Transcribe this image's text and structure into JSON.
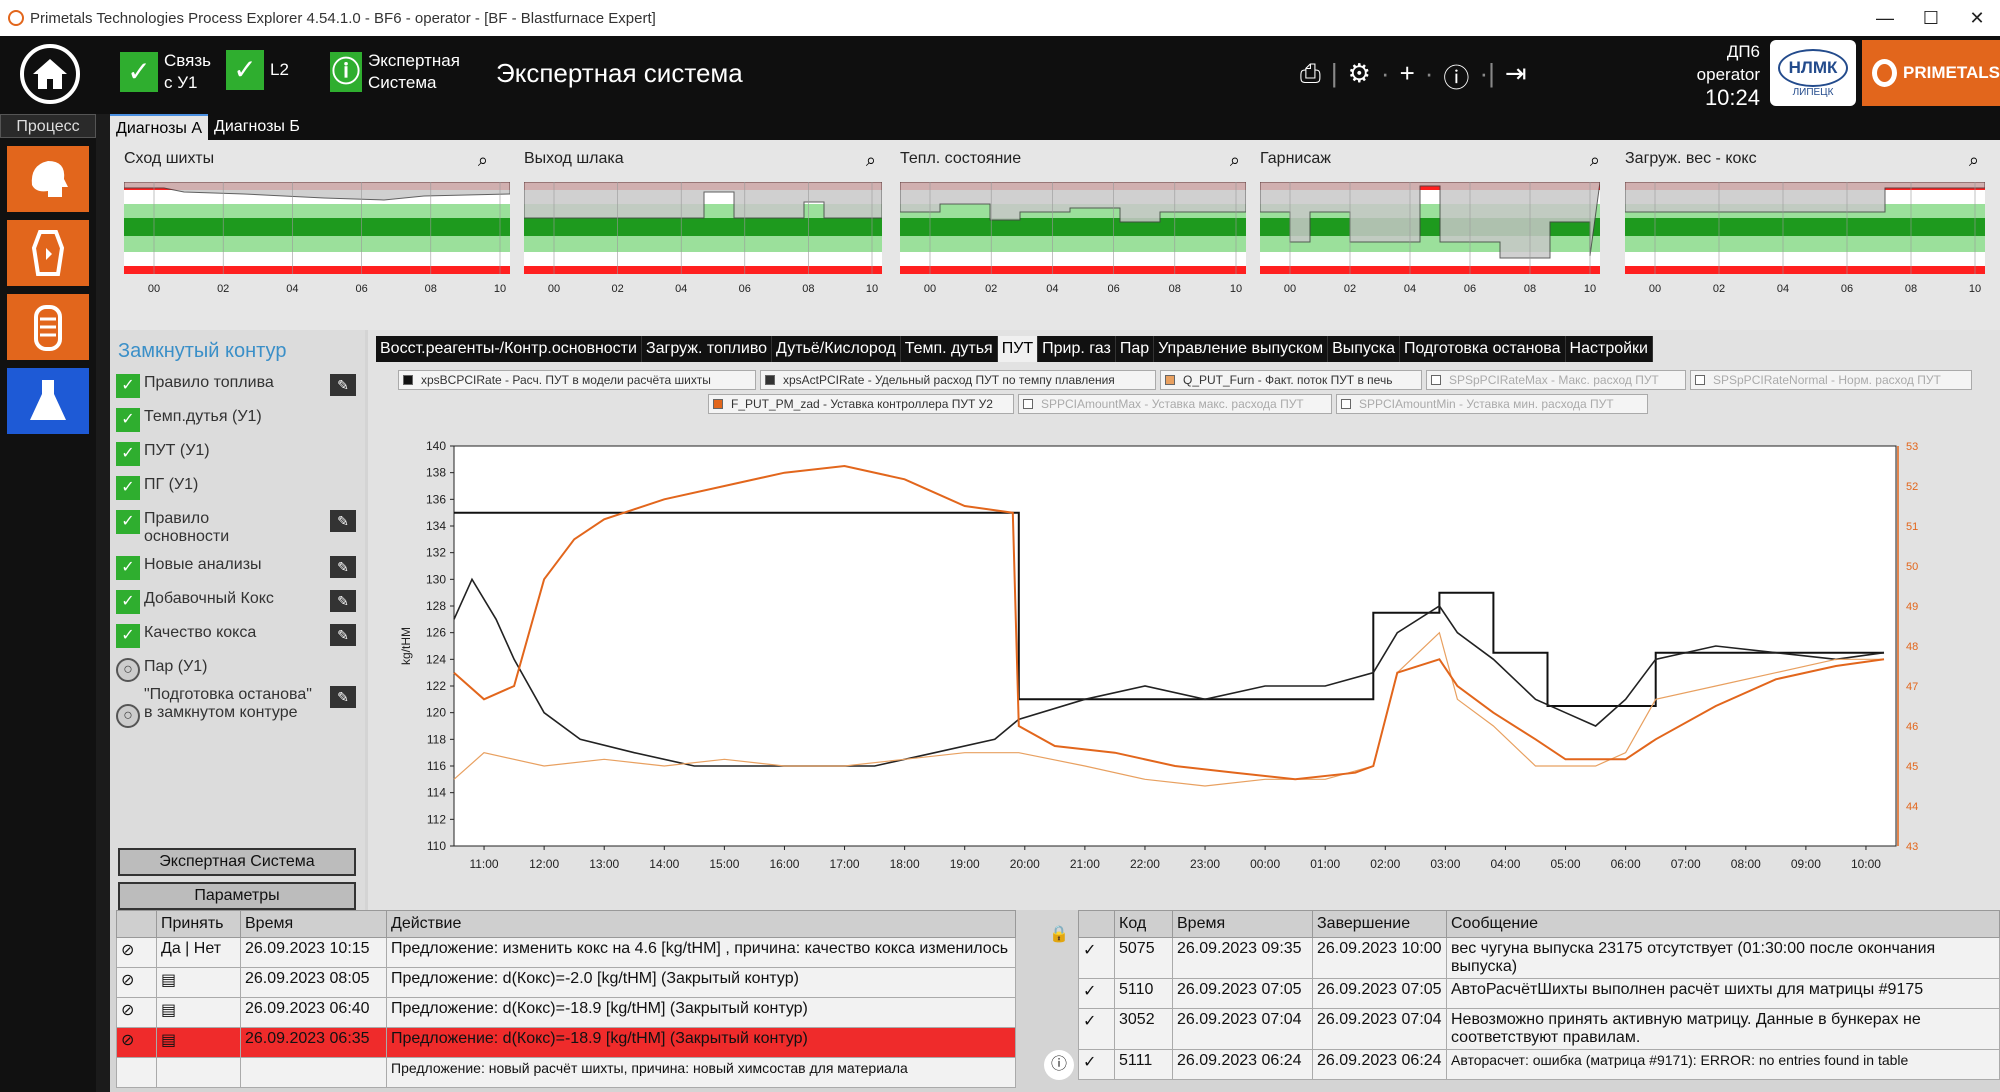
{
  "window": {
    "title": "Primetals Technologies Process Explorer 4.54.1.0 - BF6 - operator - [BF - Blastfurnace Expert]",
    "controls": [
      "—",
      "☐",
      "✕"
    ]
  },
  "topbar": {
    "status": [
      {
        "label1": "Связь",
        "label2": "с У1"
      },
      {
        "label1": "L2",
        "label2": ""
      },
      {
        "label1": "Экспертная",
        "label2": "Система"
      }
    ],
    "app_title": "Экспертная система",
    "tool_icons": [
      "print-icon",
      "gear-icon",
      "plus-icon",
      "info-icon",
      "logout-icon"
    ],
    "unit": "ДП6",
    "user": "operator",
    "time": "10:24",
    "nlmk_logo": "НЛМК",
    "nlmk_sub": "ЛИПЕЦК",
    "brand": "PRIMETALS",
    "accent": "#e2661c"
  },
  "leftnav": {
    "label": "Процесс"
  },
  "tabs_a": [
    {
      "label": "Диагнозы А",
      "active": true
    },
    {
      "label": "Диагнозы Б",
      "active": false
    }
  ],
  "diagnostics": [
    {
      "title": "Сход шихты",
      "ticks": [
        "00",
        "02",
        "04",
        "06",
        "08",
        "10"
      ]
    },
    {
      "title": "Выход шлака",
      "ticks": [
        "00",
        "02",
        "04",
        "06",
        "08",
        "10"
      ]
    },
    {
      "title": "Тепл. состояние",
      "ticks": [
        "00",
        "02",
        "04",
        "06",
        "08",
        "10"
      ]
    },
    {
      "title": "Гарнисаж",
      "ticks": [
        "00",
        "02",
        "04",
        "06",
        "08",
        "10"
      ]
    },
    {
      "title": "Загруж. вес - кокс",
      "ticks": [
        "00",
        "02",
        "04",
        "06",
        "08",
        "10"
      ]
    }
  ],
  "closed_loop": {
    "title": "Замкнутый контур",
    "items": [
      {
        "label": "Правило топлива",
        "checked": true,
        "edit": true
      },
      {
        "label": "Темп.дутья (У1)",
        "checked": true,
        "edit": false
      },
      {
        "label": "ПУТ (У1)",
        "checked": true,
        "edit": false
      },
      {
        "label": "ПГ (У1)",
        "checked": true,
        "edit": false
      },
      {
        "label": "Правило основности",
        "checked": true,
        "edit": true
      },
      {
        "label": "Новые анализы",
        "checked": true,
        "edit": true
      },
      {
        "label": "Добавочный Кокс",
        "checked": true,
        "edit": true
      },
      {
        "label": "Качество кокса",
        "checked": true,
        "edit": true
      },
      {
        "label": "Пар (У1)",
        "checked": false,
        "edit": false
      },
      {
        "label": "\"Подготовка останова\" в замкнутом контуре",
        "checked": false,
        "edit": true
      }
    ],
    "expert_button": "Экспертная Система",
    "params_button": "Параметры"
  },
  "tabs_b": [
    {
      "label": "Восст.реагенты-/Контр.основности",
      "active": false
    },
    {
      "label": "Загруж. топливо",
      "active": false
    },
    {
      "label": "Дутьё/Кислород",
      "active": false
    },
    {
      "label": "Темп. дутья",
      "active": false
    },
    {
      "label": "ПУТ",
      "active": true
    },
    {
      "label": "Прир. газ",
      "active": false
    },
    {
      "label": "Пар",
      "active": false
    },
    {
      "label": "Управление выпуском",
      "active": false
    },
    {
      "label": "Выпуска",
      "active": false
    },
    {
      "label": "Подготовка останова",
      "active": false
    },
    {
      "label": "Настройки",
      "active": false
    }
  ],
  "legend": [
    {
      "label": "xpsBCPCIRate - Расч. ПУТ в модели расчёта шихты",
      "color": "#111111",
      "active": true
    },
    {
      "label": "xpsActPCIRate - Удельный расход ПУТ по темпу плавления",
      "color": "#333333",
      "active": true
    },
    {
      "label": "Q_PUT_Furn - Факт. поток ПУТ в печь",
      "color": "#e8a060",
      "active": true
    },
    {
      "label": "SPSpPCIRateMax - Макс. расход ПУТ",
      "color": "#ffffff",
      "active": false
    },
    {
      "label": "SPSpPCIRateNormal - Норм. расход ПУТ",
      "color": "#ffffff",
      "active": false
    },
    {
      "label": "F_PUT_PM_zad - Уставка контроллера ПУТ У2",
      "color": "#e2661c",
      "active": true
    },
    {
      "label": "SPPCIAmountMax - Уставка макс. расхода ПУТ",
      "color": "#ffffff",
      "active": false
    },
    {
      "label": "SPPCIAmountMin - Уставка мин. расхода ПУТ",
      "color": "#ffffff",
      "active": false
    }
  ],
  "chart_data": {
    "type": "line",
    "ylabel": "kg/tHM",
    "ylim": [
      110,
      140
    ],
    "yticks": [
      110,
      112,
      114,
      116,
      118,
      120,
      122,
      124,
      126,
      128,
      130,
      132,
      134,
      136,
      138,
      140
    ],
    "y2lim": [
      43,
      53
    ],
    "y2ticks": [
      43,
      44,
      45,
      46,
      47,
      48,
      49,
      50,
      51,
      52,
      53
    ],
    "xlim": [
      10.5,
      34.5
    ],
    "xticks": [
      "11:00",
      "12:00",
      "13:00",
      "14:00",
      "15:00",
      "16:00",
      "17:00",
      "18:00",
      "19:00",
      "20:00",
      "21:00",
      "22:00",
      "23:00",
      "00:00",
      "01:00",
      "02:00",
      "03:00",
      "04:00",
      "05:00",
      "06:00",
      "07:00",
      "08:00",
      "09:00",
      "10:00"
    ],
    "series": [
      {
        "name": "xpsBCPCIRate",
        "color": "#111111",
        "x": [
          10.5,
          19.9,
          19.9,
          25.8,
          25.8,
          26.9,
          26.9,
          27.8,
          27.8,
          28.7,
          28.7,
          29.9,
          29.9,
          30.5,
          30.5,
          34.3
        ],
        "values": [
          135,
          135,
          121,
          121,
          127.5,
          127.5,
          129,
          129,
          124.5,
          124.5,
          120.5,
          120.5,
          120.5,
          120.5,
          124.5,
          124.5
        ]
      },
      {
        "name": "xpsActPCIRate",
        "color": "#222222",
        "x": [
          10.5,
          10.8,
          11.2,
          11.5,
          12,
          12.6,
          13.5,
          14.5,
          15.5,
          16.5,
          17.5,
          18.5,
          19.5,
          19.9,
          21,
          22,
          23,
          24,
          25,
          25.8,
          26.2,
          26.9,
          27.2,
          27.8,
          28.5,
          29,
          29.5,
          30,
          30.5,
          31.5,
          32.5,
          33.5,
          34.3
        ],
        "values": [
          127,
          130,
          127,
          124,
          120,
          118,
          117,
          116,
          116,
          116,
          116,
          117,
          118,
          119.5,
          121,
          122,
          121,
          122,
          122,
          123,
          126,
          128,
          126,
          124,
          121,
          120,
          119,
          121,
          124,
          125,
          124.5,
          124,
          124.5
        ]
      },
      {
        "name": "Q_PUT_Furn",
        "color": "#e8a060",
        "x": [
          10.5,
          11,
          12,
          13,
          14,
          15,
          16,
          17,
          18,
          19,
          19.9,
          21,
          22,
          23,
          24,
          25,
          25.8,
          26.2,
          26.9,
          27.2,
          27.8,
          28.5,
          29,
          29.5,
          30,
          30.5,
          31.5,
          32.5,
          33.5,
          34.3
        ],
        "values": [
          115,
          117,
          116,
          116.5,
          116,
          116.5,
          116,
          116,
          116.5,
          117,
          117,
          116,
          115,
          114.5,
          115,
          115,
          116,
          123,
          126,
          121,
          119,
          116,
          116,
          116,
          117,
          121,
          122,
          123,
          124,
          124
        ]
      },
      {
        "name": "F_PUT_PM_zad",
        "color": "#e2661c",
        "x": [
          10.5,
          11,
          11.5,
          12,
          12.5,
          13,
          14,
          15,
          16,
          17,
          18,
          18.5,
          19,
          19.8,
          19.9,
          20.5,
          21.5,
          22.5,
          23.5,
          24.5,
          25.5,
          25.8,
          26.2,
          26.9,
          27.2,
          27.8,
          28.5,
          29,
          29.5,
          30,
          30.5,
          31.5,
          32.5,
          33.5,
          34.3
        ],
        "values": [
          123,
          121,
          122,
          130,
          133,
          134.5,
          136,
          137,
          138,
          138.5,
          137.5,
          136.5,
          135.5,
          135,
          119,
          117.5,
          117,
          116,
          115.5,
          115,
          115.5,
          116,
          123,
          124,
          122,
          120,
          118,
          116.5,
          116.5,
          116.5,
          118,
          120.5,
          122.5,
          123.5,
          124
        ]
      }
    ]
  },
  "actions_table": {
    "headers": [
      "",
      "Принять",
      "Время",
      "Действие"
    ],
    "subheaders": [
      "Да",
      "Нет"
    ],
    "rows": [
      {
        "icon": "⊘",
        "yes": "",
        "no": "",
        "time": "26.09.2023 10:15",
        "action": "Предложение: изменить кокс на 4.6 [kg/tHM] , причина: качество кокса изменилось",
        "alarm": false
      },
      {
        "icon": "⊘",
        "yes": "▤",
        "no": "",
        "time": "26.09.2023 08:05",
        "action": "Предложение: d(Кокс)=-2.0 [kg/tHM] (Закрытый контур)",
        "alarm": false
      },
      {
        "icon": "⊘",
        "yes": "▤",
        "no": "",
        "time": "26.09.2023 06:40",
        "action": "Предложение: d(Кокс)=-18.9 [kg/tHM] (Закрытый контур)",
        "alarm": false
      },
      {
        "icon": "⊘",
        "yes": "▤",
        "no": "",
        "time": "26.09.2023 06:35",
        "action": "Предложение: d(Кокс)=-18.9 [kg/tHM] (Закрытый контур)",
        "alarm": true
      },
      {
        "icon": "",
        "yes": "",
        "no": "",
        "time": "",
        "action": "Предложение: новый расчёт шихты, причина: новый химсостав для материала",
        "alarm": false
      }
    ]
  },
  "messages_table": {
    "headers": [
      "",
      "Код",
      "Время",
      "Завершение",
      "Сообщение"
    ],
    "rows": [
      {
        "check": "✓",
        "code": "5075",
        "time": "26.09.2023 09:35",
        "end": "26.09.2023 10:00",
        "msg": "вес чугуна выпуска 23175 отсутствует (01:30:00 после окончания выпуска)"
      },
      {
        "check": "✓",
        "code": "5110",
        "time": "26.09.2023 07:05",
        "end": "26.09.2023 07:05",
        "msg": "АвтоРасчётШихты выполнен расчёт шихты для матрицы #9175"
      },
      {
        "check": "✓",
        "code": "3052",
        "time": "26.09.2023 07:04",
        "end": "26.09.2023 07:04",
        "msg": "Невозможно принять активную матрицу. Данные в бункерах не соответствуют правилам."
      },
      {
        "check": "✓",
        "code": "5111",
        "time": "26.09.2023 06:24",
        "end": "26.09.2023 06:24",
        "msg": "Авторасчет: ошибка (матрица #9171): ERROR: no entries found in table"
      }
    ]
  }
}
